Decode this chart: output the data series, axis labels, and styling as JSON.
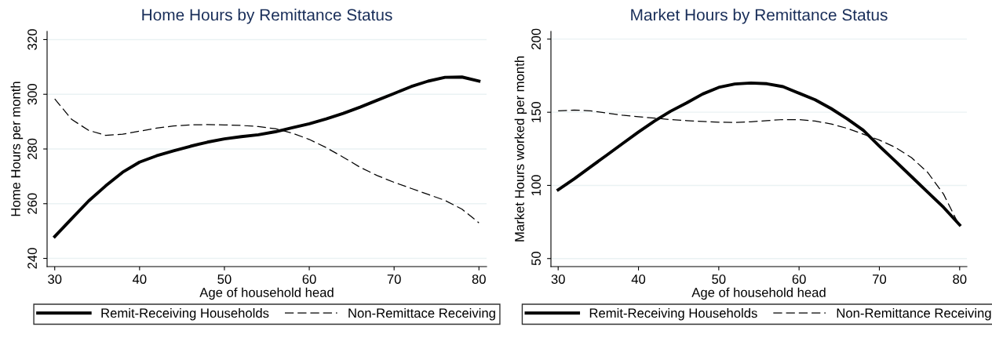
{
  "chart_data": [
    {
      "type": "line",
      "title": "Home Hours by Remittance Status",
      "xlabel": "Age of household head",
      "ylabel": "Home Hours per month",
      "x": [
        30,
        32,
        34,
        36,
        38,
        40,
        42,
        44,
        46,
        48,
        50,
        52,
        54,
        56,
        58,
        60,
        62,
        64,
        66,
        68,
        70,
        72,
        74,
        76,
        78,
        80
      ],
      "series": [
        {
          "name": "Remit-Receiving Households",
          "color": "#000000",
          "line_style": "solid",
          "values": [
            248,
            254.5,
            261,
            266.5,
            271.5,
            275.2,
            277.5,
            279.3,
            281,
            282.5,
            283.7,
            284.5,
            285.2,
            286.3,
            287.8,
            289.2,
            291,
            293,
            295.3,
            297.8,
            300.3,
            302.8,
            304.8,
            306.2,
            306.3,
            304.8
          ]
        },
        {
          "name": "Non-Remittace Receiving",
          "color": "#000000",
          "line_style": "dashed",
          "values": [
            298.3,
            290.8,
            286.8,
            285,
            285.4,
            286.5,
            287.6,
            288.4,
            288.8,
            288.9,
            288.8,
            288.6,
            288.2,
            287.4,
            285.8,
            283.5,
            280.5,
            277,
            273.3,
            270.3,
            267.8,
            265.6,
            263.4,
            261.2,
            258,
            253
          ]
        }
      ],
      "xlim": [
        29.1,
        80.9
      ],
      "ylim": [
        237,
        323
      ],
      "xticks": [
        30,
        40,
        50,
        60,
        70,
        80
      ],
      "yticks": [
        240,
        260,
        280,
        300,
        320
      ],
      "grid": "y",
      "legend": "bottom"
    },
    {
      "type": "line",
      "title": "Market Hours by Remittance Status",
      "xlabel": "Age of household head",
      "ylabel": "Market Hours worked per month",
      "x": [
        30,
        32,
        34,
        36,
        38,
        40,
        42,
        44,
        46,
        48,
        50,
        52,
        54,
        56,
        58,
        60,
        62,
        64,
        66,
        68,
        70,
        72,
        74,
        76,
        78,
        80
      ],
      "series": [
        {
          "name": "Remit-Receiving Households",
          "color": "#000000",
          "line_style": "solid",
          "values": [
            97,
            104.5,
            112.5,
            120.5,
            128.5,
            136.5,
            144,
            150.7,
            156.4,
            162.5,
            167,
            169.3,
            170,
            169.5,
            167.5,
            163,
            158.5,
            152.5,
            145.5,
            137.7,
            126.9,
            116.5,
            106,
            95.5,
            85,
            73
          ]
        },
        {
          "name": "Non-Remittance Receiving",
          "color": "#000000",
          "line_style": "dashed",
          "values": [
            151,
            151.5,
            151,
            149.5,
            148,
            147,
            146,
            145,
            144.3,
            143.7,
            143.2,
            143,
            143.5,
            144.3,
            145,
            145,
            144,
            142,
            139,
            135,
            131,
            126,
            119,
            109,
            94,
            72
          ]
        }
      ],
      "xlim": [
        29.1,
        80.9
      ],
      "ylim": [
        44.5,
        205.3
      ],
      "xticks": [
        30,
        40,
        50,
        60,
        70,
        80
      ],
      "yticks": [
        50,
        100,
        150,
        200
      ],
      "grid": "y",
      "legend": "bottom"
    }
  ]
}
